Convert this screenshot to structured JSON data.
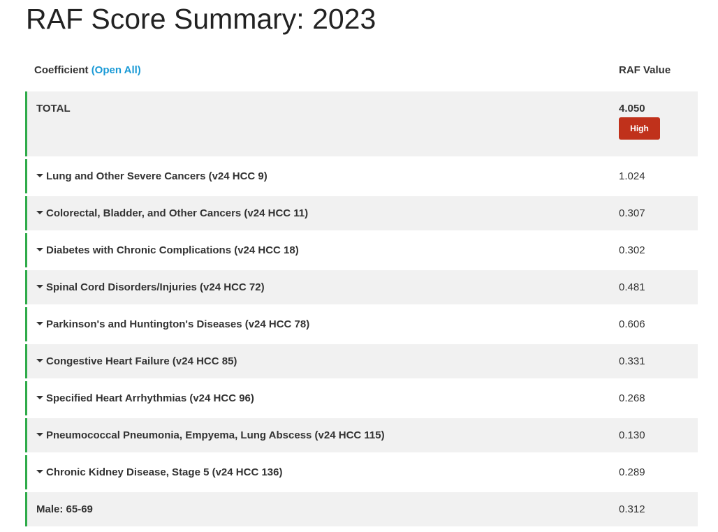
{
  "title": "RAF Score Summary: 2023",
  "header": {
    "coefficient": "Coefficient",
    "open_all": "(Open All)",
    "raf_value": "RAF Value"
  },
  "total": {
    "label": "TOTAL",
    "value": "4.050",
    "badge": "High",
    "badge_color": "#c0311b"
  },
  "accent_color": "#2fab4a",
  "rows": [
    {
      "label": "Lung and Other Severe Cancers (v24 HCC 9)",
      "value": "1.024"
    },
    {
      "label": "Colorectal, Bladder, and Other Cancers (v24 HCC 11)",
      "value": "0.307"
    },
    {
      "label": "Diabetes with Chronic Complications (v24 HCC 18)",
      "value": "0.302"
    },
    {
      "label": "Spinal Cord Disorders/Injuries (v24 HCC 72)",
      "value": "0.481"
    },
    {
      "label": "Parkinson's and Huntington's Diseases (v24 HCC 78)",
      "value": "0.606"
    },
    {
      "label": "Congestive Heart Failure (v24 HCC 85)",
      "value": "0.331"
    },
    {
      "label": "Specified Heart Arrhythmias (v24 HCC 96)",
      "value": "0.268"
    },
    {
      "label": "Pneumococcal Pneumonia, Empyema, Lung Abscess (v24 HCC 115)",
      "value": "0.130"
    },
    {
      "label": "Chronic Kidney Disease, Stage 5 (v24 HCC 136)",
      "value": "0.289"
    }
  ],
  "demographic": {
    "label": "Male: 65-69",
    "value": "0.312"
  }
}
